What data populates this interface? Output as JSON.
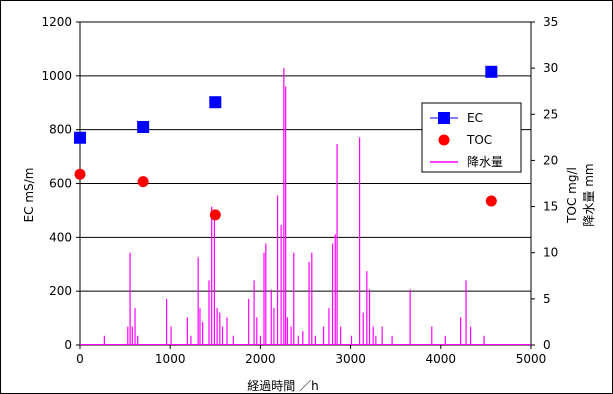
{
  "chart_data": {
    "type": "scatter",
    "xlabel": "経過時間 ／h",
    "ylabel_left": "EC mS/m",
    "ylabel_right_1": "TOC mg/l",
    "ylabel_right_2": "降水量 mm",
    "x_ticks": [
      "0",
      "1000",
      "2000",
      "3000",
      "4000",
      "5000"
    ],
    "y_left_ticks": [
      "0",
      "200",
      "400",
      "600",
      "800",
      "1000",
      "1200"
    ],
    "y_right_ticks": [
      "0",
      "5",
      "10",
      "15",
      "20",
      "25",
      "30",
      "35"
    ],
    "xlim": [
      0,
      5000
    ],
    "ylim_left": [
      0,
      1200
    ],
    "ylim_right": [
      0,
      35
    ],
    "grid": "horizontal",
    "legend_position": "right",
    "series": [
      {
        "name": "EC",
        "axis": "left",
        "marker": "square",
        "color": "#0000FF",
        "points": [
          [
            0,
            770
          ],
          [
            700,
            810
          ],
          [
            1500,
            902
          ],
          [
            4560,
            1015
          ]
        ]
      },
      {
        "name": "TOC",
        "axis": "right",
        "marker": "circle",
        "color": "#FF0000",
        "points": [
          [
            0,
            18.5
          ],
          [
            700,
            17.7
          ],
          [
            1500,
            14.1
          ],
          [
            4560,
            15.6
          ]
        ]
      },
      {
        "name": "降水量",
        "axis": "right",
        "marker": "line",
        "color": "#FF00FF",
        "points": [
          [
            270,
            1.0
          ],
          [
            530,
            2.0
          ],
          [
            555,
            10.0
          ],
          [
            580,
            2.0
          ],
          [
            610,
            4.0
          ],
          [
            640,
            1.0
          ],
          [
            960,
            5.0
          ],
          [
            1010,
            2.0
          ],
          [
            1190,
            3.0
          ],
          [
            1230,
            1.0
          ],
          [
            1310,
            9.5
          ],
          [
            1330,
            4.0
          ],
          [
            1360,
            2.5
          ],
          [
            1430,
            7.0
          ],
          [
            1460,
            15.0
          ],
          [
            1490,
            14.5
          ],
          [
            1520,
            4.0
          ],
          [
            1550,
            3.5
          ],
          [
            1580,
            2.0
          ],
          [
            1630,
            3.0
          ],
          [
            1700,
            1.0
          ],
          [
            1870,
            5.0
          ],
          [
            1930,
            7.0
          ],
          [
            1960,
            3.0
          ],
          [
            2000,
            1.0
          ],
          [
            2040,
            10.0
          ],
          [
            2060,
            11.0
          ],
          [
            2120,
            6.0
          ],
          [
            2150,
            4.0
          ],
          [
            2190,
            16.2
          ],
          [
            2230,
            13.0
          ],
          [
            2260,
            30.0
          ],
          [
            2280,
            28.0
          ],
          [
            2300,
            3.0
          ],
          [
            2340,
            2.0
          ],
          [
            2370,
            10.0
          ],
          [
            2420,
            1.0
          ],
          [
            2470,
            1.5
          ],
          [
            2540,
            9.0
          ],
          [
            2570,
            10.0
          ],
          [
            2610,
            1.0
          ],
          [
            2700,
            2.0
          ],
          [
            2760,
            4.0
          ],
          [
            2800,
            11.0
          ],
          [
            2830,
            12.0
          ],
          [
            2850,
            21.8
          ],
          [
            2890,
            2.0
          ],
          [
            3010,
            1.0
          ],
          [
            3100,
            22.5
          ],
          [
            3140,
            3.5
          ],
          [
            3180,
            8.0
          ],
          [
            3210,
            6.0
          ],
          [
            3250,
            2.0
          ],
          [
            3280,
            1.0
          ],
          [
            3350,
            2.0
          ],
          [
            3460,
            1.0
          ],
          [
            3660,
            6.0
          ],
          [
            3900,
            2.0
          ],
          [
            4050,
            1.0
          ],
          [
            4220,
            3.0
          ],
          [
            4280,
            7.0
          ],
          [
            4330,
            2.0
          ],
          [
            4480,
            1.0
          ]
        ]
      }
    ]
  }
}
